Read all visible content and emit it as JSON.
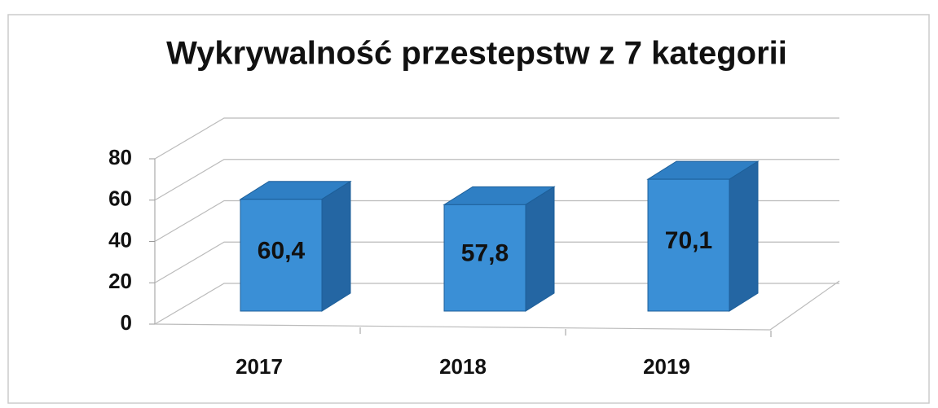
{
  "chart_data": {
    "type": "bar",
    "title": "Wykrywalność przestepstw z 7 kategorii",
    "categories": [
      "2017",
      "2018",
      "2019"
    ],
    "values": [
      60.4,
      57.8,
      70.1
    ],
    "value_labels": [
      "60,4",
      "57,8",
      "70,1"
    ],
    "color": "#3a8fd6",
    "ylim": [
      0,
      80
    ],
    "yticks": [
      0,
      20,
      40,
      60,
      80
    ],
    "grid": true
  }
}
